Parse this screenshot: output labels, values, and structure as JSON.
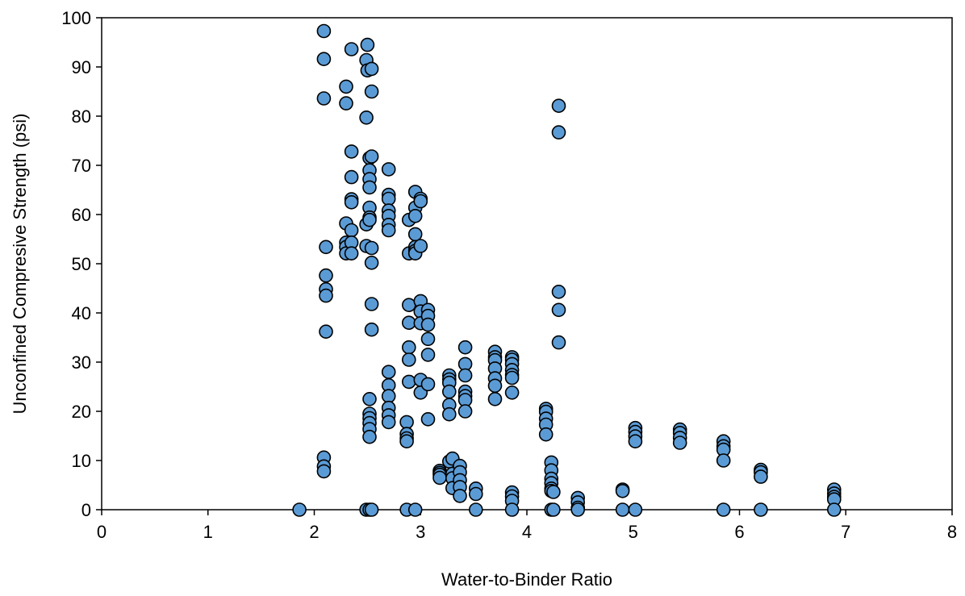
{
  "chart_data": {
    "type": "scatter",
    "title": "",
    "xlabel": "Water-to-Binder Ratio",
    "ylabel": "Unconfined Compresive Strength (psi)",
    "xlim": [
      0,
      8
    ],
    "ylim": [
      0,
      100
    ],
    "x_ticks": [
      "0",
      "1",
      "2",
      "3",
      "4",
      "5",
      "6",
      "7",
      "8"
    ],
    "y_ticks": [
      "0",
      "10",
      "20",
      "30",
      "40",
      "50",
      "60",
      "70",
      "80",
      "90",
      "100"
    ],
    "grid": false,
    "legend": "none",
    "marker_color": "#5b9bd5",
    "series": [
      {
        "points": [
          [
            1.86,
            0
          ],
          [
            2.09,
            97.3
          ],
          [
            2.09,
            91.6
          ],
          [
            2.09,
            83.6
          ],
          [
            2.09,
            10.6
          ],
          [
            2.09,
            8.8
          ],
          [
            2.09,
            7.8
          ],
          [
            2.11,
            53.4
          ],
          [
            2.11,
            47.6
          ],
          [
            2.11,
            44.8
          ],
          [
            2.11,
            43.5
          ],
          [
            2.11,
            36.2
          ],
          [
            2.3,
            86.0
          ],
          [
            2.3,
            82.6
          ],
          [
            2.3,
            58.2
          ],
          [
            2.3,
            54.3
          ],
          [
            2.3,
            53.4
          ],
          [
            2.3,
            52.1
          ],
          [
            2.35,
            93.6
          ],
          [
            2.35,
            72.8
          ],
          [
            2.35,
            67.6
          ],
          [
            2.35,
            63.1
          ],
          [
            2.35,
            62.5
          ],
          [
            2.35,
            56.8
          ],
          [
            2.35,
            54.3
          ],
          [
            2.35,
            52.1
          ],
          [
            2.49,
            91.4
          ],
          [
            2.49,
            79.7
          ],
          [
            2.49,
            58.0
          ],
          [
            2.49,
            53.6
          ],
          [
            2.49,
            0
          ],
          [
            2.5,
            94.5
          ],
          [
            2.5,
            89.3
          ],
          [
            2.52,
            71.5
          ],
          [
            2.52,
            69.0
          ],
          [
            2.52,
            67.2
          ],
          [
            2.52,
            65.5
          ],
          [
            2.52,
            61.4
          ],
          [
            2.52,
            59.4
          ],
          [
            2.52,
            58.9
          ],
          [
            2.52,
            22.5
          ],
          [
            2.52,
            19.5
          ],
          [
            2.52,
            18.6
          ],
          [
            2.52,
            17.6
          ],
          [
            2.52,
            16.4
          ],
          [
            2.52,
            14.8
          ],
          [
            2.52,
            0
          ],
          [
            2.54,
            89.6
          ],
          [
            2.54,
            85.0
          ],
          [
            2.54,
            71.8
          ],
          [
            2.54,
            53.2
          ],
          [
            2.54,
            50.2
          ],
          [
            2.54,
            41.8
          ],
          [
            2.54,
            36.6
          ],
          [
            2.54,
            0
          ],
          [
            2.7,
            69.2
          ],
          [
            2.7,
            64.0
          ],
          [
            2.7,
            63.2
          ],
          [
            2.7,
            60.8
          ],
          [
            2.7,
            59.7
          ],
          [
            2.7,
            57.9
          ],
          [
            2.7,
            56.8
          ],
          [
            2.7,
            28.0
          ],
          [
            2.7,
            25.3
          ],
          [
            2.7,
            23.1
          ],
          [
            2.7,
            20.7
          ],
          [
            2.7,
            19.2
          ],
          [
            2.7,
            17.8
          ],
          [
            2.87,
            17.8
          ],
          [
            2.87,
            15.4
          ],
          [
            2.87,
            14.5
          ],
          [
            2.87,
            13.9
          ],
          [
            2.87,
            0
          ],
          [
            2.89,
            58.9
          ],
          [
            2.89,
            52.1
          ],
          [
            2.89,
            41.6
          ],
          [
            2.89,
            38.0
          ],
          [
            2.89,
            33.0
          ],
          [
            2.89,
            30.5
          ],
          [
            2.89,
            26.0
          ],
          [
            2.95,
            64.6
          ],
          [
            2.95,
            61.4
          ],
          [
            2.95,
            59.7
          ],
          [
            2.95,
            56.0
          ],
          [
            2.95,
            53.4
          ],
          [
            2.95,
            52.6
          ],
          [
            2.95,
            52.1
          ],
          [
            2.95,
            0
          ],
          [
            3.0,
            63.2
          ],
          [
            3.0,
            62.7
          ],
          [
            3.0,
            53.6
          ],
          [
            3.0,
            42.4
          ],
          [
            3.0,
            40.3
          ],
          [
            3.0,
            37.9
          ],
          [
            3.0,
            26.4
          ],
          [
            3.0,
            23.8
          ],
          [
            3.07,
            40.6
          ],
          [
            3.07,
            39.4
          ],
          [
            3.07,
            37.6
          ],
          [
            3.07,
            34.7
          ],
          [
            3.07,
            31.5
          ],
          [
            3.07,
            25.5
          ],
          [
            3.07,
            18.4
          ],
          [
            3.18,
            7.9
          ],
          [
            3.18,
            7.5
          ],
          [
            3.18,
            7.1
          ],
          [
            3.18,
            6.5
          ],
          [
            3.27,
            27.3
          ],
          [
            3.27,
            26.5
          ],
          [
            3.27,
            25.8
          ],
          [
            3.27,
            24.0
          ],
          [
            3.27,
            21.3
          ],
          [
            3.27,
            19.4
          ],
          [
            3.27,
            9.8
          ],
          [
            3.3,
            10.4
          ],
          [
            3.3,
            7.3
          ],
          [
            3.3,
            6.4
          ],
          [
            3.3,
            4.4
          ],
          [
            3.37,
            8.9
          ],
          [
            3.37,
            7.6
          ],
          [
            3.37,
            6.0
          ],
          [
            3.37,
            4.6
          ],
          [
            3.37,
            2.8
          ],
          [
            3.42,
            33.0
          ],
          [
            3.42,
            29.6
          ],
          [
            3.42,
            27.3
          ],
          [
            3.42,
            24.0
          ],
          [
            3.42,
            23.1
          ],
          [
            3.42,
            22.3
          ],
          [
            3.42,
            20.0
          ],
          [
            3.52,
            4.3
          ],
          [
            3.52,
            3.2
          ],
          [
            3.52,
            0
          ],
          [
            3.7,
            32.1
          ],
          [
            3.7,
            31.0
          ],
          [
            3.7,
            30.4
          ],
          [
            3.7,
            28.7
          ],
          [
            3.7,
            26.7
          ],
          [
            3.7,
            25.2
          ],
          [
            3.7,
            22.5
          ],
          [
            3.86,
            31.0
          ],
          [
            3.86,
            30.5
          ],
          [
            3.86,
            29.6
          ],
          [
            3.86,
            28.4
          ],
          [
            3.86,
            27.4
          ],
          [
            3.86,
            26.8
          ],
          [
            3.86,
            23.8
          ],
          [
            3.86,
            3.5
          ],
          [
            3.86,
            2.7
          ],
          [
            3.86,
            1.8
          ],
          [
            3.86,
            0
          ],
          [
            4.18,
            20.5
          ],
          [
            4.18,
            19.9
          ],
          [
            4.18,
            18.5
          ],
          [
            4.18,
            17.3
          ],
          [
            4.18,
            15.3
          ],
          [
            4.23,
            9.6
          ],
          [
            4.23,
            8.0
          ],
          [
            4.23,
            6.3
          ],
          [
            4.23,
            5.4
          ],
          [
            4.23,
            4.3
          ],
          [
            4.23,
            3.8
          ],
          [
            4.23,
            0
          ],
          [
            4.25,
            3.6
          ],
          [
            4.25,
            0
          ],
          [
            4.3,
            82.1
          ],
          [
            4.3,
            76.7
          ],
          [
            4.3,
            44.3
          ],
          [
            4.3,
            40.6
          ],
          [
            4.3,
            34.0
          ],
          [
            4.48,
            2.4
          ],
          [
            4.48,
            1.5
          ],
          [
            4.48,
            0.4
          ],
          [
            4.48,
            0
          ],
          [
            4.9,
            4.1
          ],
          [
            4.9,
            3.8
          ],
          [
            4.9,
            0
          ],
          [
            5.02,
            16.6
          ],
          [
            5.02,
            15.8
          ],
          [
            5.02,
            14.9
          ],
          [
            5.02,
            13.9
          ],
          [
            5.02,
            0
          ],
          [
            5.44,
            16.3
          ],
          [
            5.44,
            15.6
          ],
          [
            5.44,
            14.6
          ],
          [
            5.44,
            13.6
          ],
          [
            5.85,
            13.9
          ],
          [
            5.85,
            12.9
          ],
          [
            5.85,
            12.2
          ],
          [
            5.85,
            10.0
          ],
          [
            5.85,
            0
          ],
          [
            6.2,
            8.1
          ],
          [
            6.2,
            7.6
          ],
          [
            6.2,
            6.7
          ],
          [
            6.2,
            0
          ],
          [
            6.89,
            4.1
          ],
          [
            6.89,
            3.3
          ],
          [
            6.89,
            2.6
          ],
          [
            6.89,
            2.1
          ],
          [
            6.89,
            0
          ]
        ]
      }
    ]
  }
}
